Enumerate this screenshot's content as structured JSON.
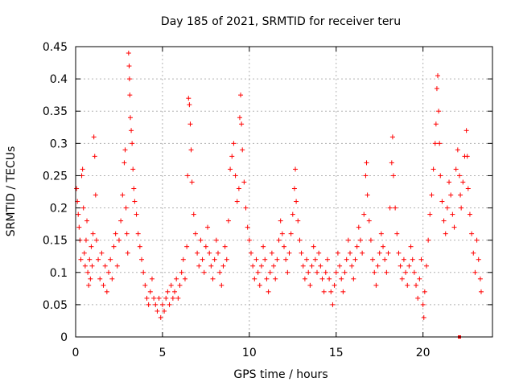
{
  "chart_data": {
    "type": "scatter",
    "title": "Day 185 of 2021, SRMTID for receiver teru",
    "xlabel": "GPS time / hours",
    "ylabel": "SRMTID / TECUs",
    "xlim": [
      0,
      24
    ],
    "ylim": [
      0,
      0.45
    ],
    "xticks": [
      0,
      5,
      10,
      15,
      20
    ],
    "yticks": [
      0,
      0.05,
      0.1,
      0.15,
      0.2,
      0.25,
      0.3,
      0.35,
      0.4,
      0.45
    ],
    "xtick_labels": [
      "0",
      "5",
      "10",
      "15",
      "20"
    ],
    "ytick_labels": [
      "0",
      "0.05",
      "0.1",
      "0.15",
      "0.2",
      "0.25",
      "0.3",
      "0.35",
      "0.4",
      "0.45"
    ],
    "grid": true,
    "marker": "+",
    "color": "#ff0000",
    "series": [
      {
        "name": "SRMTID",
        "points": [
          [
            0.05,
            0.23
          ],
          [
            0.1,
            0.21
          ],
          [
            0.15,
            0.19
          ],
          [
            0.2,
            0.17
          ],
          [
            0.25,
            0.15
          ],
          [
            0.3,
            0.12
          ],
          [
            0.35,
            0.25
          ],
          [
            0.4,
            0.26
          ],
          [
            0.45,
            0.2
          ],
          [
            0.5,
            0.13
          ],
          [
            0.55,
            0.11
          ],
          [
            0.6,
            0.15
          ],
          [
            0.65,
            0.18
          ],
          [
            0.7,
            0.1
          ],
          [
            0.75,
            0.08
          ],
          [
            0.8,
            0.12
          ],
          [
            0.85,
            0.09
          ],
          [
            0.9,
            0.14
          ],
          [
            0.95,
            0.11
          ],
          [
            1.0,
            0.16
          ],
          [
            1.05,
            0.31
          ],
          [
            1.1,
            0.28
          ],
          [
            1.15,
            0.22
          ],
          [
            1.2,
            0.15
          ],
          [
            1.3,
            0.12
          ],
          [
            1.4,
            0.09
          ],
          [
            1.5,
            0.13
          ],
          [
            1.6,
            0.08
          ],
          [
            1.7,
            0.11
          ],
          [
            1.8,
            0.07
          ],
          [
            1.9,
            0.1
          ],
          [
            2.0,
            0.12
          ],
          [
            2.1,
            0.09
          ],
          [
            2.2,
            0.14
          ],
          [
            2.3,
            0.16
          ],
          [
            2.4,
            0.11
          ],
          [
            2.5,
            0.15
          ],
          [
            2.6,
            0.18
          ],
          [
            2.7,
            0.22
          ],
          [
            2.8,
            0.27
          ],
          [
            2.85,
            0.29
          ],
          [
            2.9,
            0.2
          ],
          [
            2.95,
            0.16
          ],
          [
            3.0,
            0.13
          ],
          [
            3.05,
            0.44
          ],
          [
            3.08,
            0.42
          ],
          [
            3.1,
            0.4
          ],
          [
            3.12,
            0.375
          ],
          [
            3.15,
            0.34
          ],
          [
            3.2,
            0.32
          ],
          [
            3.25,
            0.3
          ],
          [
            3.3,
            0.26
          ],
          [
            3.35,
            0.23
          ],
          [
            3.4,
            0.21
          ],
          [
            3.5,
            0.19
          ],
          [
            3.6,
            0.16
          ],
          [
            3.7,
            0.14
          ],
          [
            3.8,
            0.12
          ],
          [
            3.9,
            0.1
          ],
          [
            4.0,
            0.08
          ],
          [
            4.1,
            0.06
          ],
          [
            4.2,
            0.05
          ],
          [
            4.3,
            0.07
          ],
          [
            4.4,
            0.09
          ],
          [
            4.5,
            0.06
          ],
          [
            4.6,
            0.05
          ],
          [
            4.7,
            0.04
          ],
          [
            4.8,
            0.06
          ],
          [
            4.9,
            0.03
          ],
          [
            5.0,
            0.05
          ],
          [
            5.1,
            0.04
          ],
          [
            5.2,
            0.06
          ],
          [
            5.3,
            0.07
          ],
          [
            5.4,
            0.05
          ],
          [
            5.5,
            0.08
          ],
          [
            5.6,
            0.06
          ],
          [
            5.7,
            0.07
          ],
          [
            5.8,
            0.09
          ],
          [
            5.9,
            0.06
          ],
          [
            6.0,
            0.08
          ],
          [
            6.1,
            0.1
          ],
          [
            6.2,
            0.12
          ],
          [
            6.3,
            0.09
          ],
          [
            6.4,
            0.14
          ],
          [
            6.45,
            0.25
          ],
          [
            6.5,
            0.37
          ],
          [
            6.55,
            0.36
          ],
          [
            6.6,
            0.33
          ],
          [
            6.65,
            0.29
          ],
          [
            6.7,
            0.24
          ],
          [
            6.8,
            0.19
          ],
          [
            6.9,
            0.16
          ],
          [
            7.0,
            0.13
          ],
          [
            7.1,
            0.11
          ],
          [
            7.2,
            0.15
          ],
          [
            7.3,
            0.12
          ],
          [
            7.4,
            0.1
          ],
          [
            7.5,
            0.14
          ],
          [
            7.6,
            0.17
          ],
          [
            7.7,
            0.13
          ],
          [
            7.8,
            0.11
          ],
          [
            7.9,
            0.09
          ],
          [
            8.0,
            0.12
          ],
          [
            8.1,
            0.15
          ],
          [
            8.2,
            0.13
          ],
          [
            8.3,
            0.1
          ],
          [
            8.4,
            0.08
          ],
          [
            8.5,
            0.11
          ],
          [
            8.6,
            0.14
          ],
          [
            8.7,
            0.12
          ],
          [
            8.8,
            0.18
          ],
          [
            8.9,
            0.26
          ],
          [
            9.0,
            0.28
          ],
          [
            9.1,
            0.3
          ],
          [
            9.2,
            0.25
          ],
          [
            9.3,
            0.21
          ],
          [
            9.4,
            0.23
          ],
          [
            9.45,
            0.34
          ],
          [
            9.5,
            0.375
          ],
          [
            9.55,
            0.33
          ],
          [
            9.6,
            0.29
          ],
          [
            9.7,
            0.24
          ],
          [
            9.8,
            0.2
          ],
          [
            9.9,
            0.17
          ],
          [
            10.0,
            0.15
          ],
          [
            10.1,
            0.13
          ],
          [
            10.2,
            0.11
          ],
          [
            10.3,
            0.09
          ],
          [
            10.4,
            0.12
          ],
          [
            10.5,
            0.1
          ],
          [
            10.6,
            0.08
          ],
          [
            10.7,
            0.11
          ],
          [
            10.8,
            0.14
          ],
          [
            10.9,
            0.12
          ],
          [
            11.0,
            0.09
          ],
          [
            11.1,
            0.07
          ],
          [
            11.2,
            0.1
          ],
          [
            11.3,
            0.13
          ],
          [
            11.4,
            0.11
          ],
          [
            11.5,
            0.09
          ],
          [
            11.6,
            0.12
          ],
          [
            11.7,
            0.15
          ],
          [
            11.8,
            0.18
          ],
          [
            11.9,
            0.16
          ],
          [
            12.0,
            0.14
          ],
          [
            12.1,
            0.12
          ],
          [
            12.2,
            0.1
          ],
          [
            12.3,
            0.13
          ],
          [
            12.4,
            0.16
          ],
          [
            12.5,
            0.19
          ],
          [
            12.6,
            0.23
          ],
          [
            12.65,
            0.26
          ],
          [
            12.7,
            0.21
          ],
          [
            12.8,
            0.18
          ],
          [
            12.9,
            0.15
          ],
          [
            13.0,
            0.13
          ],
          [
            13.1,
            0.11
          ],
          [
            13.2,
            0.09
          ],
          [
            13.3,
            0.12
          ],
          [
            13.4,
            0.1
          ],
          [
            13.5,
            0.08
          ],
          [
            13.6,
            0.11
          ],
          [
            13.7,
            0.14
          ],
          [
            13.8,
            0.12
          ],
          [
            13.9,
            0.1
          ],
          [
            14.0,
            0.13
          ],
          [
            14.1,
            0.11
          ],
          [
            14.2,
            0.09
          ],
          [
            14.3,
            0.07
          ],
          [
            14.4,
            0.1
          ],
          [
            14.5,
            0.12
          ],
          [
            14.6,
            0.09
          ],
          [
            14.7,
            0.07
          ],
          [
            14.8,
            0.05
          ],
          [
            14.9,
            0.08
          ],
          [
            15.0,
            0.1
          ],
          [
            15.1,
            0.13
          ],
          [
            15.2,
            0.11
          ],
          [
            15.3,
            0.09
          ],
          [
            15.4,
            0.07
          ],
          [
            15.5,
            0.1
          ],
          [
            15.6,
            0.12
          ],
          [
            15.7,
            0.15
          ],
          [
            15.8,
            0.13
          ],
          [
            15.9,
            0.11
          ],
          [
            16.0,
            0.09
          ],
          [
            16.1,
            0.12
          ],
          [
            16.2,
            0.14
          ],
          [
            16.3,
            0.17
          ],
          [
            16.4,
            0.15
          ],
          [
            16.5,
            0.13
          ],
          [
            16.6,
            0.19
          ],
          [
            16.7,
            0.25
          ],
          [
            16.75,
            0.27
          ],
          [
            16.8,
            0.22
          ],
          [
            16.9,
            0.18
          ],
          [
            17.0,
            0.15
          ],
          [
            17.1,
            0.12
          ],
          [
            17.2,
            0.1
          ],
          [
            17.3,
            0.08
          ],
          [
            17.4,
            0.11
          ],
          [
            17.5,
            0.13
          ],
          [
            17.6,
            0.16
          ],
          [
            17.7,
            0.14
          ],
          [
            17.8,
            0.12
          ],
          [
            17.9,
            0.1
          ],
          [
            18.0,
            0.13
          ],
          [
            18.1,
            0.2
          ],
          [
            18.2,
            0.27
          ],
          [
            18.25,
            0.31
          ],
          [
            18.3,
            0.25
          ],
          [
            18.4,
            0.2
          ],
          [
            18.5,
            0.16
          ],
          [
            18.6,
            0.13
          ],
          [
            18.7,
            0.11
          ],
          [
            18.8,
            0.09
          ],
          [
            18.9,
            0.12
          ],
          [
            19.0,
            0.1
          ],
          [
            19.1,
            0.08
          ],
          [
            19.2,
            0.11
          ],
          [
            19.3,
            0.14
          ],
          [
            19.4,
            0.12
          ],
          [
            19.5,
            0.1
          ],
          [
            19.6,
            0.08
          ],
          [
            19.7,
            0.06
          ],
          [
            19.8,
            0.09
          ],
          [
            19.9,
            0.12
          ],
          [
            20.0,
            0.05
          ],
          [
            20.05,
            0.03
          ],
          [
            20.1,
            0.07
          ],
          [
            20.2,
            0.11
          ],
          [
            20.3,
            0.15
          ],
          [
            20.4,
            0.19
          ],
          [
            20.5,
            0.22
          ],
          [
            20.6,
            0.26
          ],
          [
            20.7,
            0.3
          ],
          [
            20.75,
            0.33
          ],
          [
            20.8,
            0.385
          ],
          [
            20.85,
            0.405
          ],
          [
            20.9,
            0.35
          ],
          [
            20.95,
            0.3
          ],
          [
            21.0,
            0.25
          ],
          [
            21.1,
            0.21
          ],
          [
            21.2,
            0.18
          ],
          [
            21.3,
            0.16
          ],
          [
            21.4,
            0.2
          ],
          [
            21.5,
            0.24
          ],
          [
            21.6,
            0.22
          ],
          [
            21.7,
            0.19
          ],
          [
            21.8,
            0.17
          ],
          [
            21.9,
            0.26
          ],
          [
            22.0,
            0.29
          ],
          [
            22.1,
            0.25
          ],
          [
            22.15,
            0.22
          ],
          [
            22.2,
            0.2
          ],
          [
            22.3,
            0.24
          ],
          [
            22.4,
            0.28
          ],
          [
            22.5,
            0.32
          ],
          [
            22.55,
            0.28
          ],
          [
            22.6,
            0.23
          ],
          [
            22.7,
            0.19
          ],
          [
            22.8,
            0.16
          ],
          [
            22.9,
            0.13
          ],
          [
            23.0,
            0.1
          ],
          [
            23.1,
            0.15
          ],
          [
            23.2,
            0.12
          ],
          [
            23.3,
            0.09
          ],
          [
            23.35,
            0.07
          ]
        ]
      }
    ],
    "outlier_point": [
      22.1,
      0.0
    ]
  }
}
